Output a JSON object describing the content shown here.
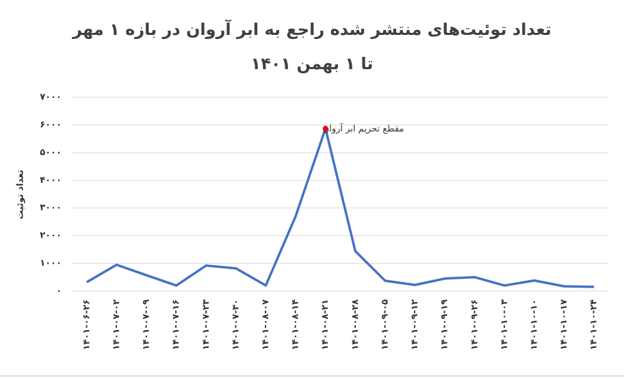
{
  "chart_data": {
    "type": "line",
    "title": "تعداد توئیت‌های منتشر شده راجع به ابر آروان در بازه ۱ مهر تا ۱ بهمن ۱۴۰۱",
    "y_label": "تعداد توئیت",
    "annotation": "مقطع تحریم ابر آروان",
    "categories": [
      "۱۴۰۱-۰۶-۲۶",
      "۱۴۰۱-۰۷-۰۲",
      "۱۴۰۱-۰۷-۰۹",
      "۱۴۰۱-۰۷-۱۶",
      "۱۴۰۱-۰۷-۲۳",
      "۱۴۰۱-۰۷-۳۰",
      "۱۴۰۱-۰۸-۰۷",
      "۱۴۰۱-۰۸-۱۴",
      "۱۴۰۱-۰۸-۲۱",
      "۱۴۰۱-۰۸-۲۸",
      "۱۴۰۱-۰۹-۰۵",
      "۱۴۰۱-۰۹-۱۲",
      "۱۴۰۱-۰۹-۱۹",
      "۱۴۰۱-۰۹-۲۶",
      "۱۴۰۱-۱۰-۰۳",
      "۱۴۰۱-۱۰-۱۰",
      "۱۴۰۱-۱۰-۱۷",
      "۱۴۰۱-۱۰-۲۴"
    ],
    "series": [
      {
        "color": "#4472c4",
        "values": [
          320,
          950,
          570,
          200,
          920,
          820,
          200,
          2700,
          5870,
          1440,
          370,
          220,
          450,
          500,
          200,
          380,
          170,
          150
        ]
      }
    ],
    "ylim": [
      0,
      7000
    ],
    "yticks": [
      {
        "value": 0,
        "label": "۰"
      },
      {
        "value": 1000,
        "label": "۱۰۰۰"
      },
      {
        "value": 2000,
        "label": "۲۰۰۰"
      },
      {
        "value": 3000,
        "label": "۳۰۰۰"
      },
      {
        "value": 4000,
        "label": "۴۰۰۰"
      },
      {
        "value": 5000,
        "label": "۵۰۰۰"
      },
      {
        "value": 6000,
        "label": "۶۰۰۰"
      },
      {
        "value": 7000,
        "label": "۷۰۰۰"
      }
    ],
    "grid": true
  }
}
